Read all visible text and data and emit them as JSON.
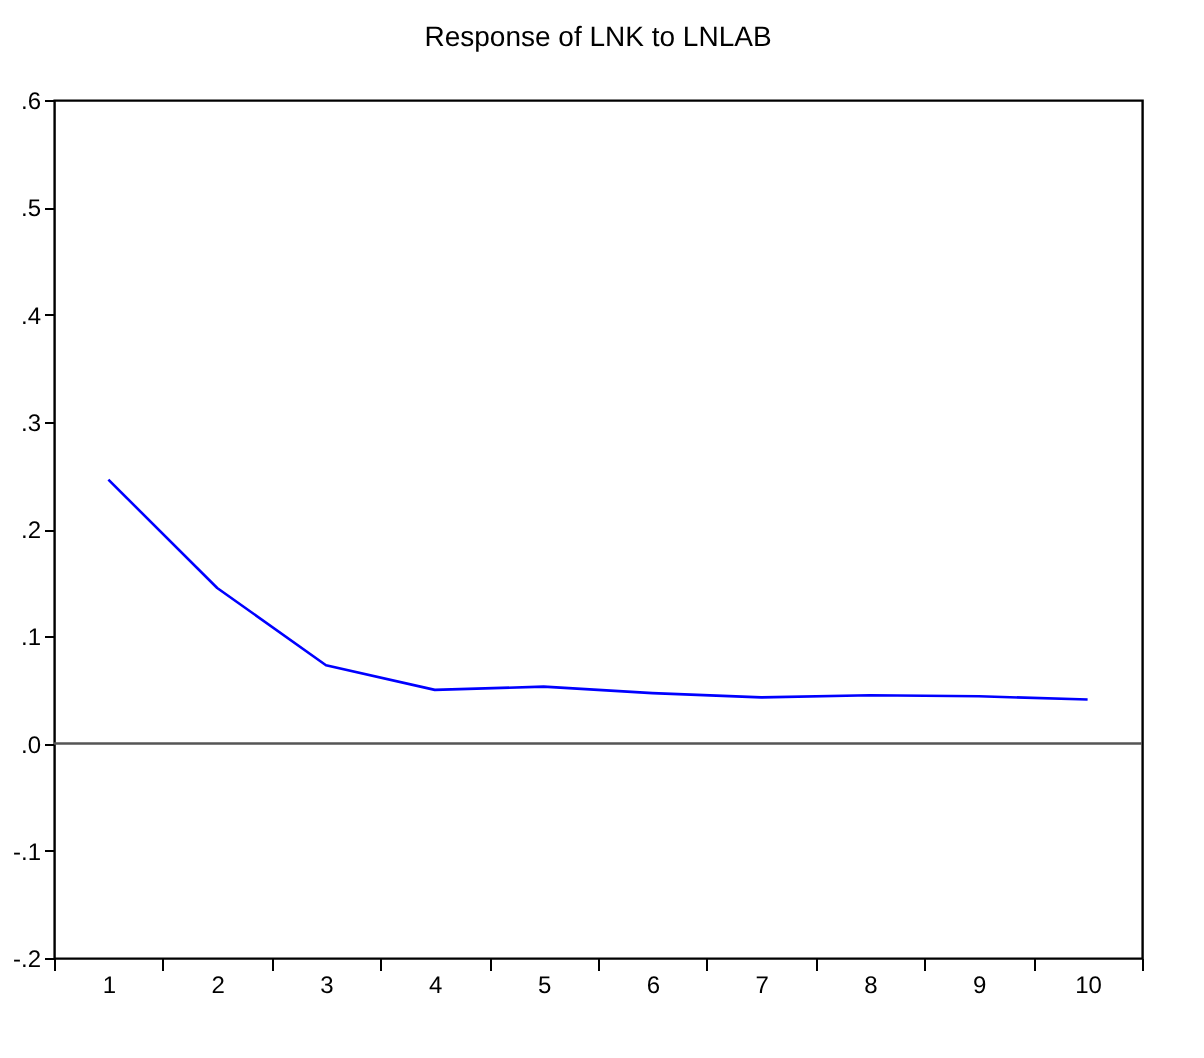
{
  "chart_data": {
    "type": "line",
    "title": "Response of LNK to LNLAB",
    "categories": [
      "1",
      "2",
      "3",
      "4",
      "5",
      "6",
      "7",
      "8",
      "9",
      "10"
    ],
    "series": [
      {
        "color": "#0000ff",
        "values": [
          0.246,
          0.145,
          0.073,
          0.05,
          0.053,
          0.047,
          0.043,
          0.045,
          0.044,
          0.041
        ]
      }
    ],
    "ylim": [
      -0.2,
      0.6
    ],
    "yticks": [
      {
        "value": -0.2,
        "label": "-.2"
      },
      {
        "value": -0.1,
        "label": "-.1"
      },
      {
        "value": 0.0,
        "label": ".0"
      },
      {
        "value": 0.1,
        "label": ".1"
      },
      {
        "value": 0.2,
        "label": ".2"
      },
      {
        "value": 0.3,
        "label": ".3"
      },
      {
        "value": 0.4,
        "label": ".4"
      },
      {
        "value": 0.5,
        "label": ".5"
      },
      {
        "value": 0.6,
        "label": ".6"
      }
    ],
    "ref_lines": [
      {
        "axis": "y",
        "value": 0,
        "color": "#555555"
      }
    ],
    "grid": false,
    "legend": false,
    "marker": "none",
    "line_style": "solid"
  }
}
